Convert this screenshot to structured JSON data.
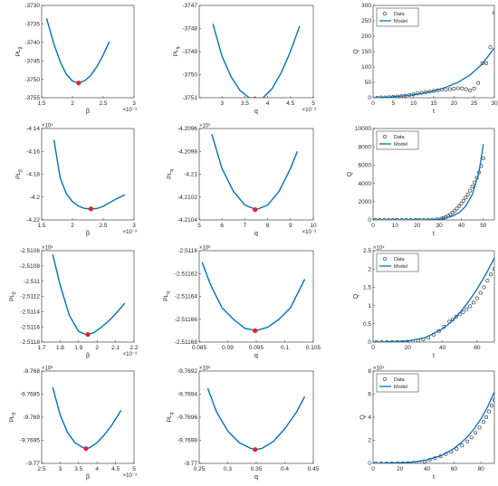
{
  "chart_data": [
    {
      "id": "r1c1",
      "type": "line",
      "title": "",
      "xlabel": "β",
      "ylabel": "PL_β",
      "xlim": [
        1.5,
        3
      ],
      "ylim": [
        -3755,
        -3730
      ],
      "xticks": [
        1.5,
        2,
        2.5,
        3
      ],
      "xtick_labels": [
        "1.5",
        "2",
        "2.5",
        "3"
      ],
      "yticks": [
        -3755,
        -3750,
        -3745,
        -3740,
        -3735,
        -3730
      ],
      "ytick_labels": [
        "-3755",
        "-3750",
        "-3745",
        "-3740",
        "-3735",
        "-3730"
      ],
      "x_exponent": "×10⁻³",
      "y_exponent": "",
      "series": [
        {
          "color": "#0072BD",
          "x": [
            1.58,
            1.7,
            1.8,
            1.9,
            2.0,
            2.1,
            2.2,
            2.3,
            2.4,
            2.5,
            2.6
          ],
          "y": [
            -3733.5,
            -3740.5,
            -3745.2,
            -3748.6,
            -3750.5,
            -3751.0,
            -3750.4,
            -3748.9,
            -3746.5,
            -3743.4,
            -3739.8
          ]
        }
      ],
      "markers": [
        {
          "x": 2.1,
          "y": -3751.0,
          "color": "#E8202A"
        }
      ]
    },
    {
      "id": "r1c2",
      "type": "line",
      "title": "",
      "xlabel": "q",
      "ylabel": "PL_q",
      "xlim": [
        2.5,
        5
      ],
      "ylim": [
        -3751,
        -3747
      ],
      "xticks": [
        3,
        3.5,
        4,
        4.5,
        5
      ],
      "xtick_labels": [
        "3",
        "3.5",
        "4",
        "4.5",
        "5"
      ],
      "yticks": [
        -3751,
        -3750,
        -3749,
        -3748,
        -3747
      ],
      "ytick_labels": [
        "-3751",
        "-3750",
        "-3749",
        "-3748",
        "-3747"
      ],
      "x_exponent": "×10⁻³",
      "y_exponent": "",
      "series": [
        {
          "color": "#0072BD",
          "x": [
            2.8,
            3.0,
            3.2,
            3.4,
            3.6,
            3.75,
            3.9,
            4.1,
            4.3,
            4.5,
            4.7
          ],
          "y": [
            -3747.8,
            -3749.2,
            -3750.1,
            -3750.7,
            -3751.0,
            -3751.05,
            -3751.0,
            -3750.6,
            -3749.9,
            -3749.0,
            -3747.9
          ]
        }
      ],
      "markers": [
        {
          "x": 3.72,
          "y": -3751.05,
          "color": "#E8202A"
        }
      ]
    },
    {
      "id": "r1c3",
      "type": "line",
      "title": "",
      "xlabel": "t",
      "ylabel": "Q",
      "xlim": [
        0,
        30
      ],
      "ylim": [
        0,
        300
      ],
      "xticks": [
        0,
        5,
        10,
        15,
        20,
        25,
        30
      ],
      "xtick_labels": [
        "0",
        "5",
        "10",
        "15",
        "20",
        "25",
        "30"
      ],
      "yticks": [
        0,
        50,
        100,
        150,
        200,
        250,
        300
      ],
      "ytick_labels": [
        "0",
        "50",
        "100",
        "150",
        "200",
        "250",
        "300"
      ],
      "x_exponent": "",
      "y_exponent": "",
      "legend": [
        "Data",
        "Model"
      ],
      "data_x": [
        1,
        2,
        3,
        4,
        5,
        6,
        7,
        8,
        9,
        10,
        11,
        12,
        13,
        14,
        15,
        16,
        17,
        18,
        19,
        20,
        21,
        22,
        23,
        24,
        25,
        26,
        27,
        28,
        29,
        30
      ],
      "data_y": [
        0,
        1,
        1,
        2,
        3,
        4,
        5,
        7,
        9,
        11,
        14,
        16,
        18,
        20,
        22,
        24,
        26,
        27,
        28,
        29,
        31,
        30,
        28,
        24,
        30,
        48,
        112,
        112,
        164,
        276
      ],
      "model_x": [
        0,
        3,
        6,
        9,
        12,
        15,
        18,
        21,
        24,
        27,
        30
      ],
      "model_y": [
        0,
        1.5,
        4,
        8,
        14,
        22,
        34,
        50,
        74,
        110,
        162
      ]
    },
    {
      "id": "r2c1",
      "type": "line",
      "title": "",
      "xlabel": "β",
      "ylabel": "PL_β",
      "xlim": [
        1.5,
        3
      ],
      "ylim": [
        -4.22,
        -4.14
      ],
      "xticks": [
        1.5,
        2,
        2.5,
        3
      ],
      "xtick_labels": [
        "1.5",
        "2",
        "2.5",
        "3"
      ],
      "yticks": [
        -4.22,
        -4.2,
        -4.18,
        -4.16,
        -4.14
      ],
      "ytick_labels": [
        "-4.22",
        "-4.2",
        "-4.18",
        "-4.16",
        "-4.14"
      ],
      "x_exponent": "×10⁻³",
      "y_exponent": "×10⁵",
      "series": [
        {
          "color": "#0072BD",
          "x": [
            1.7,
            1.8,
            1.9,
            2.0,
            2.1,
            2.2,
            2.3,
            2.4,
            2.5,
            2.6,
            2.7,
            2.85
          ],
          "y": [
            -4.15,
            -4.183,
            -4.197,
            -4.204,
            -4.208,
            -4.21,
            -4.2103,
            -4.21,
            -4.208,
            -4.205,
            -4.202,
            -4.198
          ]
        }
      ],
      "markers": [
        {
          "x": 2.3,
          "y": -4.2103,
          "color": "#E8202A"
        }
      ]
    },
    {
      "id": "r2c2",
      "type": "line",
      "title": "",
      "xlabel": "q",
      "ylabel": "PL_q",
      "xlim": [
        5,
        10
      ],
      "ylim": [
        -4.2104,
        -4.2096
      ],
      "xticks": [
        5,
        6,
        7,
        8,
        9,
        10
      ],
      "xtick_labels": [
        "5",
        "6",
        "7",
        "8",
        "9",
        "10"
      ],
      "yticks": [
        -4.2104,
        -4.2102,
        -4.21,
        -4.2098,
        -4.2096
      ],
      "ytick_labels": [
        "-4.2104",
        "-4.2102",
        "-4.21",
        "-4.2098",
        "-4.2096"
      ],
      "x_exponent": "×10⁻³",
      "y_exponent": "×10⁵",
      "series": [
        {
          "color": "#0072BD",
          "x": [
            5.55,
            6.0,
            6.5,
            7.0,
            7.5,
            8.0,
            8.5,
            9.0,
            9.3
          ],
          "y": [
            -4.20965,
            -4.20995,
            -4.21015,
            -4.21027,
            -4.21031,
            -4.21027,
            -4.21015,
            -4.20995,
            -4.2098
          ]
        }
      ],
      "markers": [
        {
          "x": 7.45,
          "y": -4.21031,
          "color": "#E8202A"
        }
      ]
    },
    {
      "id": "r2c3",
      "type": "line",
      "title": "",
      "xlabel": "t",
      "ylabel": "Q",
      "xlim": [
        0,
        55
      ],
      "ylim": [
        0,
        10000
      ],
      "xticks": [
        0,
        10,
        20,
        30,
        40,
        50
      ],
      "xtick_labels": [
        "0",
        "10",
        "20",
        "30",
        "40",
        "50"
      ],
      "yticks": [
        0,
        2000,
        4000,
        6000,
        8000,
        10000
      ],
      "ytick_labels": [
        "0",
        "2000",
        "4000",
        "6000",
        "8000",
        "10000"
      ],
      "x_exponent": "",
      "y_exponent": "",
      "legend": [
        "Data",
        "Model"
      ],
      "data_x": [
        1,
        3,
        5,
        7,
        9,
        11,
        13,
        15,
        17,
        19,
        21,
        23,
        25,
        27,
        29,
        31,
        32,
        33,
        34,
        35,
        36,
        37,
        38,
        39,
        40,
        41,
        42,
        43,
        44,
        45,
        46,
        47,
        48,
        49,
        50
      ],
      "data_y": [
        0,
        0,
        0,
        0,
        0,
        0,
        0,
        0,
        0,
        0,
        0,
        0,
        10,
        30,
        80,
        150,
        220,
        320,
        450,
        600,
        800,
        1000,
        1250,
        1500,
        1800,
        2100,
        2450,
        2800,
        3200,
        3650,
        4100,
        4600,
        5200,
        5900,
        6750
      ],
      "model_x": [
        0,
        10,
        20,
        25,
        30,
        33,
        36,
        39,
        42,
        45,
        48,
        50
      ],
      "model_y": [
        0,
        0,
        5,
        20,
        80,
        200,
        420,
        800,
        1500,
        2800,
        5200,
        8300
      ]
    },
    {
      "id": "r3c1",
      "type": "line",
      "title": "",
      "xlabel": "β",
      "ylabel": "PL_β",
      "xlim": [
        1.7,
        2.2
      ],
      "ylim": [
        -2.5118,
        -2.5106
      ],
      "xticks": [
        1.7,
        1.8,
        1.9,
        2,
        2.1,
        2.2
      ],
      "xtick_labels": [
        "1.7",
        "1.8",
        "1.9",
        "2",
        "2.1",
        "2.2"
      ],
      "yticks": [
        -2.5118,
        -2.5116,
        -2.5114,
        -2.5112,
        -2.511,
        -2.5108,
        -2.5106
      ],
      "ytick_labels": [
        "-2.5118",
        "-2.5116",
        "-2.5114",
        "-2.5112",
        "-2.511",
        "-2.5108",
        "-2.5106"
      ],
      "x_exponent": "×10⁻³",
      "y_exponent": "×10⁶",
      "series": [
        {
          "color": "#0072BD",
          "x": [
            1.76,
            1.8,
            1.85,
            1.9,
            1.94,
            1.98,
            2.02,
            2.06,
            2.1,
            2.15
          ],
          "y": [
            -2.51065,
            -2.51105,
            -2.51145,
            -2.51166,
            -2.5117,
            -2.51168,
            -2.51161,
            -2.51153,
            -2.51143,
            -2.51129
          ]
        }
      ],
      "markers": [
        {
          "x": 1.95,
          "y": -2.5117,
          "color": "#E8202A"
        }
      ]
    },
    {
      "id": "r3c2",
      "type": "line",
      "title": "",
      "xlabel": "q",
      "ylabel": "PL_q",
      "xlim": [
        0.085,
        0.105
      ],
      "ylim": [
        -2.51168,
        -2.5116
      ],
      "xticks": [
        0.085,
        0.09,
        0.095,
        0.1,
        0.105
      ],
      "xtick_labels": [
        "0.085",
        "0.09",
        "0.095",
        "0.1",
        "0.105"
      ],
      "yticks": [
        -2.51168,
        -2.51166,
        -2.51164,
        -2.51162,
        -2.5116
      ],
      "ytick_labels": [
        "-2.51168",
        "-2.51166",
        "-2.51164",
        "-2.51162",
        "-2.5116"
      ],
      "x_exponent": "",
      "y_exponent": "×10⁶",
      "series": [
        {
          "color": "#0072BD",
          "x": [
            0.0855,
            0.087,
            0.089,
            0.091,
            0.093,
            0.095,
            0.097,
            0.099,
            0.101,
            0.1035
          ],
          "y": [
            -2.51161,
            -2.51163,
            -2.51165,
            -2.51166,
            -2.511668,
            -2.51167,
            -2.511667,
            -2.51166,
            -2.51165,
            -2.511625
          ]
        }
      ],
      "markers": [
        {
          "x": 0.0948,
          "y": -2.51167,
          "color": "#E8202A"
        }
      ]
    },
    {
      "id": "r3c3",
      "type": "line",
      "title": "",
      "xlabel": "t",
      "ylabel": "Q",
      "xlim": [
        0,
        70
      ],
      "ylim": [
        0,
        2.5
      ],
      "xticks": [
        0,
        20,
        40,
        60
      ],
      "xtick_labels": [
        "0",
        "20",
        "40",
        "60"
      ],
      "yticks": [
        0,
        0.5,
        1,
        1.5,
        2,
        2.5
      ],
      "ytick_labels": [
        "0",
        "0.5",
        "1",
        "1.5",
        "2",
        "2.5"
      ],
      "x_exponent": "",
      "y_exponent": "×10⁴",
      "legend": [
        "Data",
        "Model"
      ],
      "data_x": [
        2,
        5,
        8,
        11,
        14,
        17,
        20,
        23,
        26,
        29,
        32,
        35,
        38,
        41,
        44,
        46,
        48,
        50,
        52,
        54,
        56,
        58,
        60,
        62,
        64,
        66,
        68,
        70
      ],
      "data_y": [
        0,
        0,
        0,
        0,
        0,
        0,
        0.01,
        0.02,
        0.04,
        0.07,
        0.12,
        0.2,
        0.3,
        0.42,
        0.56,
        0.62,
        0.7,
        0.76,
        0.82,
        0.9,
        0.98,
        1.08,
        1.2,
        1.35,
        1.5,
        1.68,
        1.85,
        2.0
      ],
      "model_x": [
        0,
        10,
        20,
        30,
        40,
        45,
        50,
        55,
        60,
        65,
        70
      ],
      "model_y": [
        0,
        0.01,
        0.03,
        0.12,
        0.36,
        0.55,
        0.8,
        1.1,
        1.45,
        1.85,
        2.3
      ]
    },
    {
      "id": "r4c1",
      "type": "line",
      "title": "",
      "xlabel": "β",
      "ylabel": "PL_β",
      "xlim": [
        2.5,
        5
      ],
      "ylim": [
        -9.77,
        -9.768
      ],
      "xticks": [
        2.5,
        3,
        3.5,
        4,
        4.5,
        5
      ],
      "xtick_labels": [
        "2.5",
        "3",
        "3.5",
        "4",
        "4.5",
        "5"
      ],
      "yticks": [
        -9.77,
        -9.7695,
        -9.769,
        -9.7685,
        -9.768
      ],
      "ytick_labels": [
        "-9.77",
        "-9.7695",
        "-9.769",
        "-9.7685",
        "-9.768"
      ],
      "x_exponent": "×10⁻³",
      "y_exponent": "×10⁶",
      "series": [
        {
          "color": "#0072BD",
          "x": [
            2.8,
            3.0,
            3.2,
            3.4,
            3.6,
            3.7,
            3.8,
            4.0,
            4.2,
            4.4,
            4.65
          ],
          "y": [
            -9.76835,
            -9.76895,
            -9.76933,
            -9.76955,
            -9.76965,
            -9.76968,
            -9.76966,
            -9.76955,
            -9.76938,
            -9.76917,
            -9.76885
          ]
        }
      ],
      "markers": [
        {
          "x": 3.7,
          "y": -9.76968,
          "color": "#E8202A"
        }
      ]
    },
    {
      "id": "r4c2",
      "type": "line",
      "title": "",
      "xlabel": "q",
      "ylabel": "PL_q",
      "xlim": [
        0.25,
        0.45
      ],
      "ylim": [
        -9.77,
        -9.7692
      ],
      "xticks": [
        0.25,
        0.3,
        0.35,
        0.4,
        0.45
      ],
      "xtick_labels": [
        "0.25",
        "0.3",
        "0.35",
        "0.4",
        "0.45"
      ],
      "yticks": [
        -9.77,
        -9.7698,
        -9.7696,
        -9.7694,
        -9.7692
      ],
      "ytick_labels": [
        "-9.77",
        "-9.7698",
        "-9.7696",
        "-9.7694",
        "-9.7692"
      ],
      "x_exponent": "",
      "y_exponent": "×10⁶",
      "series": [
        {
          "color": "#0072BD",
          "x": [
            0.265,
            0.28,
            0.3,
            0.32,
            0.34,
            0.35,
            0.36,
            0.38,
            0.4,
            0.42,
            0.435
          ],
          "y": [
            -9.76935,
            -9.76955,
            -9.76972,
            -9.76982,
            -9.76987,
            -9.76988,
            -9.76987,
            -9.76981,
            -9.7697,
            -9.76956,
            -9.76942
          ]
        }
      ],
      "markers": [
        {
          "x": 0.348,
          "y": -9.76988,
          "color": "#E8202A"
        }
      ]
    },
    {
      "id": "r4c3",
      "type": "line",
      "title": "",
      "xlabel": "t",
      "ylabel": "Q",
      "xlim": [
        0,
        90
      ],
      "ylim": [
        0,
        8
      ],
      "xticks": [
        0,
        20,
        40,
        60,
        80
      ],
      "xtick_labels": [
        "0",
        "20",
        "40",
        "60",
        "80"
      ],
      "yticks": [
        0,
        2,
        4,
        6,
        8
      ],
      "ytick_labels": [
        "0",
        "2",
        "4",
        "6",
        "8"
      ],
      "x_exponent": "",
      "y_exponent": "×10⁴",
      "legend": [
        "Data",
        "Model"
      ],
      "data_x": [
        2,
        6,
        10,
        14,
        18,
        22,
        26,
        30,
        34,
        38,
        42,
        46,
        50,
        54,
        58,
        62,
        66,
        70,
        73,
        76,
        79,
        82,
        84,
        86,
        88,
        90
      ],
      "data_y": [
        0,
        0,
        0,
        0,
        0,
        0.01,
        0.02,
        0.05,
        0.1,
        0.18,
        0.3,
        0.45,
        0.62,
        0.8,
        1.0,
        1.25,
        1.55,
        1.9,
        2.25,
        2.65,
        3.1,
        3.6,
        4.0,
        4.5,
        5.0,
        5.5
      ],
      "model_x": [
        0,
        10,
        20,
        30,
        40,
        50,
        55,
        60,
        65,
        70,
        75,
        80,
        85,
        90
      ],
      "model_y": [
        0,
        0.02,
        0.05,
        0.12,
        0.3,
        0.65,
        0.95,
        1.3,
        1.75,
        2.3,
        3.0,
        3.85,
        4.9,
        6.2
      ]
    }
  ]
}
